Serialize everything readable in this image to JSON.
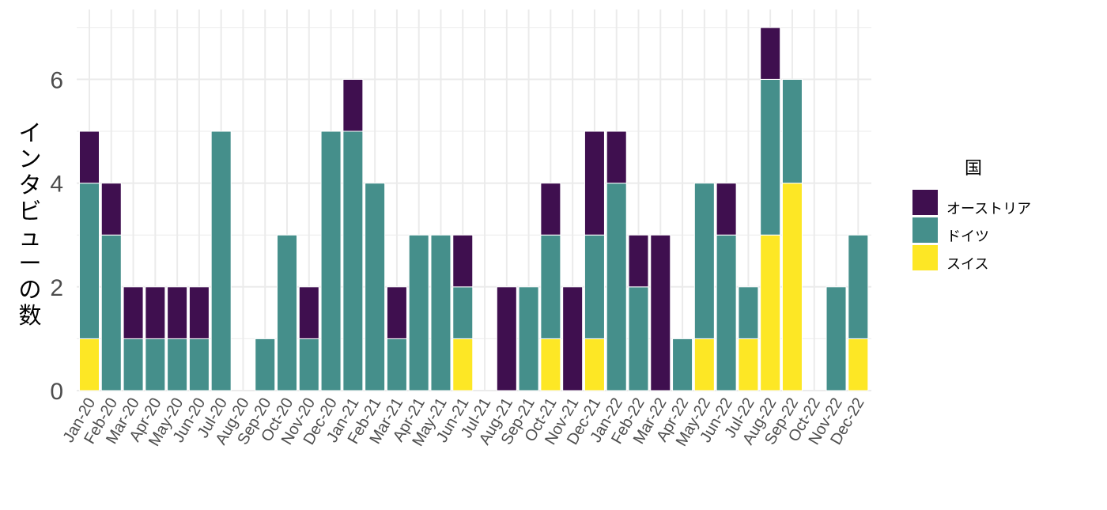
{
  "chart_data": {
    "type": "bar",
    "stacked": true,
    "ylabel": "インタビューの数",
    "xlabel": "",
    "ylim": [
      0,
      7.2
    ],
    "yticks": [
      0,
      2,
      4,
      6
    ],
    "grid": true,
    "legend_title": "国",
    "legend_position": "right",
    "categories": [
      "Jan-20",
      "Feb-20",
      "Mar-20",
      "Apr-20",
      "May-20",
      "Jun-20",
      "Jul-20",
      "Aug-20",
      "Sep-20",
      "Oct-20",
      "Nov-20",
      "Dec-20",
      "Jan-21",
      "Feb-21",
      "Mar-21",
      "Apr-21",
      "May-21",
      "Jun-21",
      "Jul-21",
      "Aug-21",
      "Sep-21",
      "Oct-21",
      "Nov-21",
      "Dec-21",
      "Jan-22",
      "Feb-22",
      "Mar-22",
      "Apr-22",
      "May-22",
      "Jun-22",
      "Jul-22",
      "Aug-22",
      "Sep-22",
      "Oct-22",
      "Nov-22",
      "Dec-22"
    ],
    "series": [
      {
        "name": "スイス",
        "color": "#fde725",
        "values": [
          1,
          0,
          0,
          0,
          0,
          0,
          0,
          0,
          0,
          0,
          0,
          0,
          0,
          0,
          0,
          0,
          0,
          1,
          0,
          0,
          0,
          1,
          0,
          1,
          0,
          0,
          0,
          0,
          1,
          0,
          1,
          3,
          4,
          0,
          0,
          1
        ]
      },
      {
        "name": "ドイツ",
        "color": "#458f8b",
        "values": [
          3,
          3,
          1,
          1,
          1,
          1,
          5,
          0,
          1,
          3,
          1,
          5,
          5,
          4,
          1,
          3,
          3,
          1,
          0,
          0,
          2,
          2,
          0,
          2,
          4,
          2,
          0,
          1,
          3,
          3,
          1,
          3,
          2,
          0,
          2,
          2
        ]
      },
      {
        "name": "オーストリア",
        "color": "#3f0f4f",
        "values": [
          1,
          1,
          1,
          1,
          1,
          1,
          0,
          0,
          0,
          0,
          1,
          0,
          1,
          0,
          1,
          0,
          0,
          1,
          0,
          2,
          0,
          1,
          2,
          2,
          1,
          1,
          3,
          0,
          0,
          1,
          0,
          1,
          0,
          0,
          0,
          0
        ]
      }
    ],
    "legend_order": [
      "オーストリア",
      "ドイツ",
      "スイス"
    ]
  }
}
